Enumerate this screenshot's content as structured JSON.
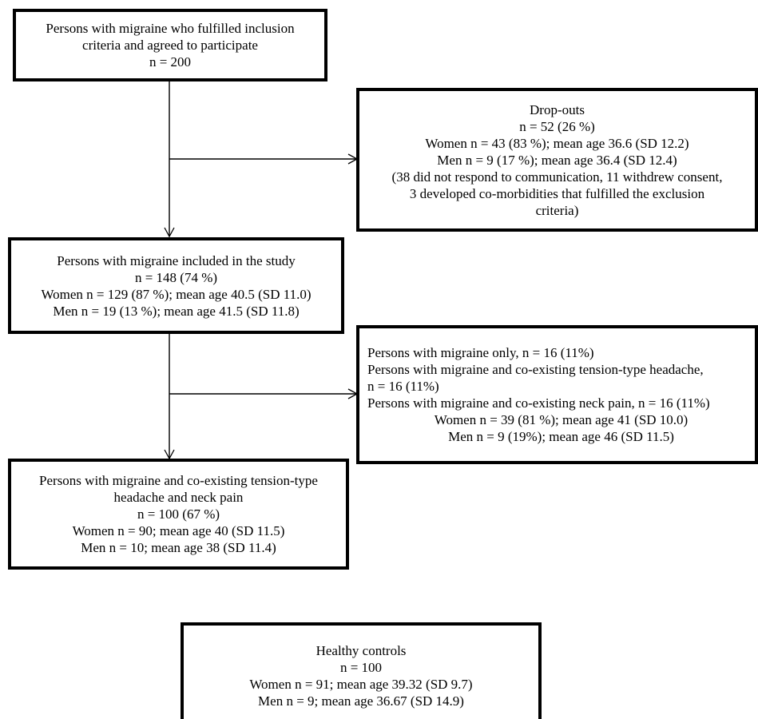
{
  "boxes": {
    "enrolled": {
      "lines": [
        "Persons with migraine who fulfilled inclusion",
        "criteria and agreed to participate",
        "n = 200"
      ]
    },
    "dropouts": {
      "lines": [
        "Drop-outs",
        "n = 52 (26 %)",
        "Women n = 43 (83 %); mean age 36.6 (SD 12.2)",
        "Men n = 9 (17 %); mean age 36.4 (SD 12.4)",
        "(38 did not respond to communication, 11 withdrew consent,",
        "3 developed co-morbidities that fulfilled the exclusion",
        "criteria)"
      ]
    },
    "included": {
      "lines": [
        "Persons with migraine included in the study",
        "n = 148 (74 %)",
        "Women n = 129 (87 %); mean age 40.5 (SD 11.0)",
        "Men n = 19 (13 %); mean age 41.5 (SD 11.8)"
      ]
    },
    "subgroups": {
      "lines": [
        "Persons with migraine only, n = 16 (11%)",
        "Persons with migraine and co-existing tension-type headache,",
        "n = 16 (11%)",
        "Persons with migraine and co-existing neck pain, n = 16 (11%)",
        "Women n = 39 (81 %); mean age 41 (SD 10.0)",
        "Men n = 9 (19%); mean age 46 (SD 11.5)"
      ]
    },
    "coexisting": {
      "lines": [
        "Persons with migraine and co-existing tension-type",
        "headache and neck pain",
        "n = 100 (67 %)",
        "Women n = 90; mean age 40 (SD 11.5)",
        "Men n = 10; mean age 38 (SD 11.4)"
      ]
    },
    "controls": {
      "lines": [
        "Healthy controls",
        "n = 100",
        "Women n = 91; mean age 39.32 (SD 9.7)",
        "Men n = 9; mean age 36.67 (SD 14.9)"
      ]
    }
  }
}
